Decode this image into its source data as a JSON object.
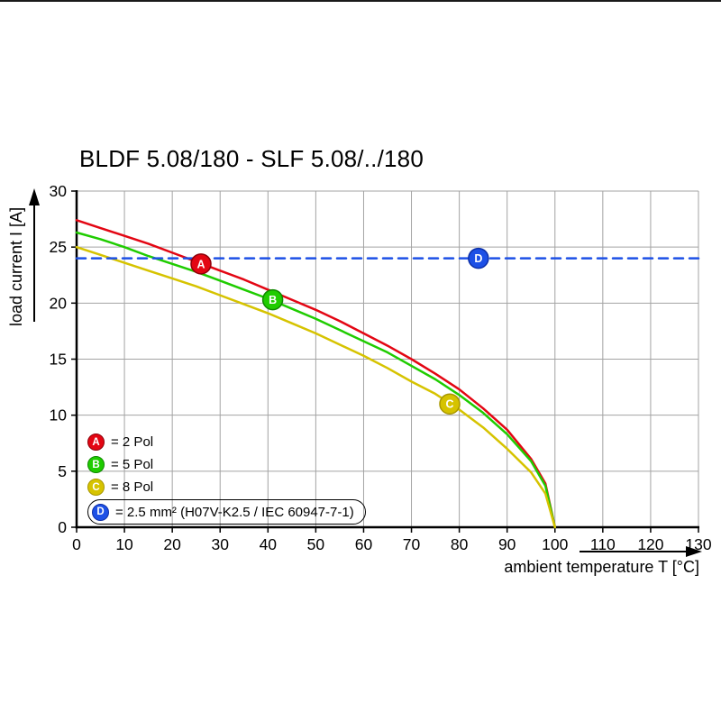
{
  "page": {
    "top_edge_color": "#1a1a1a"
  },
  "chart_data": {
    "type": "line",
    "title": "BLDF 5.08/180 - SLF 5.08/../180",
    "xlabel": "ambient temperature T [°C]",
    "ylabel": "load current I [A]",
    "xlim": [
      0,
      130
    ],
    "ylim": [
      0,
      30
    ],
    "xticks": [
      0,
      10,
      20,
      30,
      40,
      50,
      60,
      70,
      80,
      90,
      100,
      110,
      120,
      130
    ],
    "yticks": [
      0,
      5,
      10,
      15,
      20,
      25,
      30
    ],
    "grid": true,
    "grid_color": "#a3a3a3",
    "legend_position": "inside-bottom-left",
    "series": [
      {
        "name": "A",
        "label": "= 2 Pol",
        "color": "#e30613",
        "edge": "#8e0009",
        "style": "solid",
        "marker": {
          "x": 26,
          "y": 23.5
        },
        "points": [
          [
            0,
            27.4
          ],
          [
            5,
            26.7
          ],
          [
            10,
            26.0
          ],
          [
            15,
            25.3
          ],
          [
            20,
            24.5
          ],
          [
            25,
            23.7
          ],
          [
            30,
            22.9
          ],
          [
            35,
            22.1
          ],
          [
            40,
            21.2
          ],
          [
            45,
            20.3
          ],
          [
            50,
            19.4
          ],
          [
            55,
            18.4
          ],
          [
            60,
            17.3
          ],
          [
            65,
            16.2
          ],
          [
            70,
            15.0
          ],
          [
            75,
            13.7
          ],
          [
            80,
            12.3
          ],
          [
            85,
            10.6
          ],
          [
            90,
            8.7
          ],
          [
            95,
            6.1
          ],
          [
            98,
            3.9
          ],
          [
            100,
            0
          ]
        ]
      },
      {
        "name": "B",
        "label": "= 5 Pol",
        "color": "#1fcc00",
        "edge": "#0f8800",
        "style": "solid",
        "marker": {
          "x": 41,
          "y": 20.3
        },
        "points": [
          [
            0,
            26.3
          ],
          [
            5,
            25.7
          ],
          [
            10,
            25.0
          ],
          [
            15,
            24.2
          ],
          [
            20,
            23.5
          ],
          [
            25,
            22.8
          ],
          [
            30,
            22.0
          ],
          [
            35,
            21.2
          ],
          [
            40,
            20.4
          ],
          [
            45,
            19.5
          ],
          [
            50,
            18.6
          ],
          [
            55,
            17.6
          ],
          [
            60,
            16.6
          ],
          [
            65,
            15.6
          ],
          [
            70,
            14.4
          ],
          [
            75,
            13.2
          ],
          [
            80,
            11.8
          ],
          [
            85,
            10.2
          ],
          [
            90,
            8.3
          ],
          [
            95,
            5.9
          ],
          [
            98,
            3.7
          ],
          [
            100,
            0
          ]
        ]
      },
      {
        "name": "C",
        "label": "= 8 Pol",
        "color": "#d6c300",
        "edge": "#a89700",
        "style": "solid",
        "marker": {
          "x": 78,
          "y": 11
        },
        "points": [
          [
            0,
            25.0
          ],
          [
            5,
            24.3
          ],
          [
            10,
            23.6
          ],
          [
            15,
            22.9
          ],
          [
            20,
            22.2
          ],
          [
            25,
            21.5
          ],
          [
            30,
            20.7
          ],
          [
            35,
            19.9
          ],
          [
            40,
            19.1
          ],
          [
            45,
            18.2
          ],
          [
            50,
            17.3
          ],
          [
            55,
            16.3
          ],
          [
            60,
            15.3
          ],
          [
            65,
            14.2
          ],
          [
            70,
            13.0
          ],
          [
            75,
            11.9
          ],
          [
            80,
            10.5
          ],
          [
            85,
            8.9
          ],
          [
            90,
            7.0
          ],
          [
            95,
            4.9
          ],
          [
            98,
            3.0
          ],
          [
            100,
            0
          ]
        ]
      },
      {
        "name": "D",
        "label": "= 2.5 mm² (H07V-K2.5 / IEC 60947-7-1)",
        "color": "#1d50e6",
        "edge": "#0c2fa8",
        "style": "dashed",
        "boxed_legend": true,
        "marker": {
          "x": 84,
          "y": 24
        },
        "points": [
          [
            0,
            24
          ],
          [
            130,
            24
          ]
        ]
      }
    ]
  }
}
